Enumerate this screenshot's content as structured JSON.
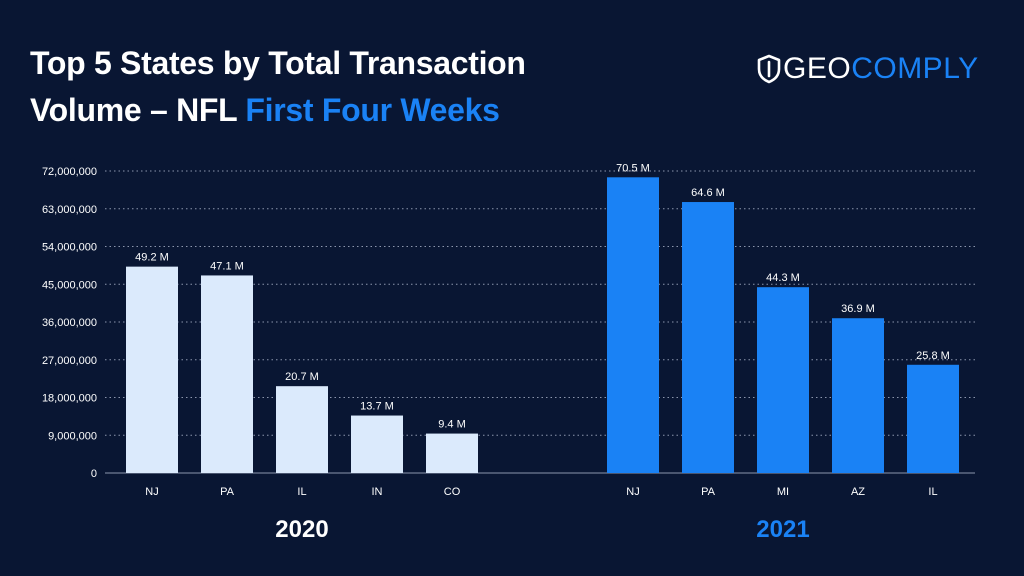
{
  "title": {
    "line1": "Top 5 States by Total Transaction",
    "line2_prefix": "Volume – NFL ",
    "line2_accent": "First Four Weeks"
  },
  "logo": {
    "geo": "GEO",
    "comply": "COMPLY"
  },
  "colors": {
    "background": "#091633",
    "accent": "#1a82f5",
    "bar_2020": "#dbeafc",
    "bar_2021": "#1a82f5",
    "grid": "#8c96ad"
  },
  "chart_data": {
    "type": "bar",
    "ylim": [
      0,
      72000000
    ],
    "yticks": [
      0,
      9000000,
      18000000,
      27000000,
      36000000,
      45000000,
      54000000,
      63000000,
      72000000
    ],
    "ytick_labels": [
      "0",
      "9,000,000",
      "18,000,000",
      "27,000,000",
      "36,000,000",
      "45,000,000",
      "54,000,000",
      "63,000,000",
      "72,000,000"
    ],
    "grid": true,
    "groups": [
      {
        "name": "2020",
        "categories": [
          "NJ",
          "PA",
          "IL",
          "IN",
          "CO"
        ],
        "values": [
          49200000,
          47100000,
          20700000,
          13700000,
          9400000
        ],
        "labels": [
          "49.2 M",
          "47.1 M",
          "20.7 M",
          "13.7 M",
          "9.4 M"
        ]
      },
      {
        "name": "2021",
        "categories": [
          "NJ",
          "PA",
          "MI",
          "AZ",
          "IL"
        ],
        "values": [
          70500000,
          64600000,
          44300000,
          36900000,
          25800000
        ],
        "labels": [
          "70.5 M",
          "64.6 M",
          "44.3 M",
          "36.9 M",
          "25.8 M"
        ]
      }
    ]
  }
}
